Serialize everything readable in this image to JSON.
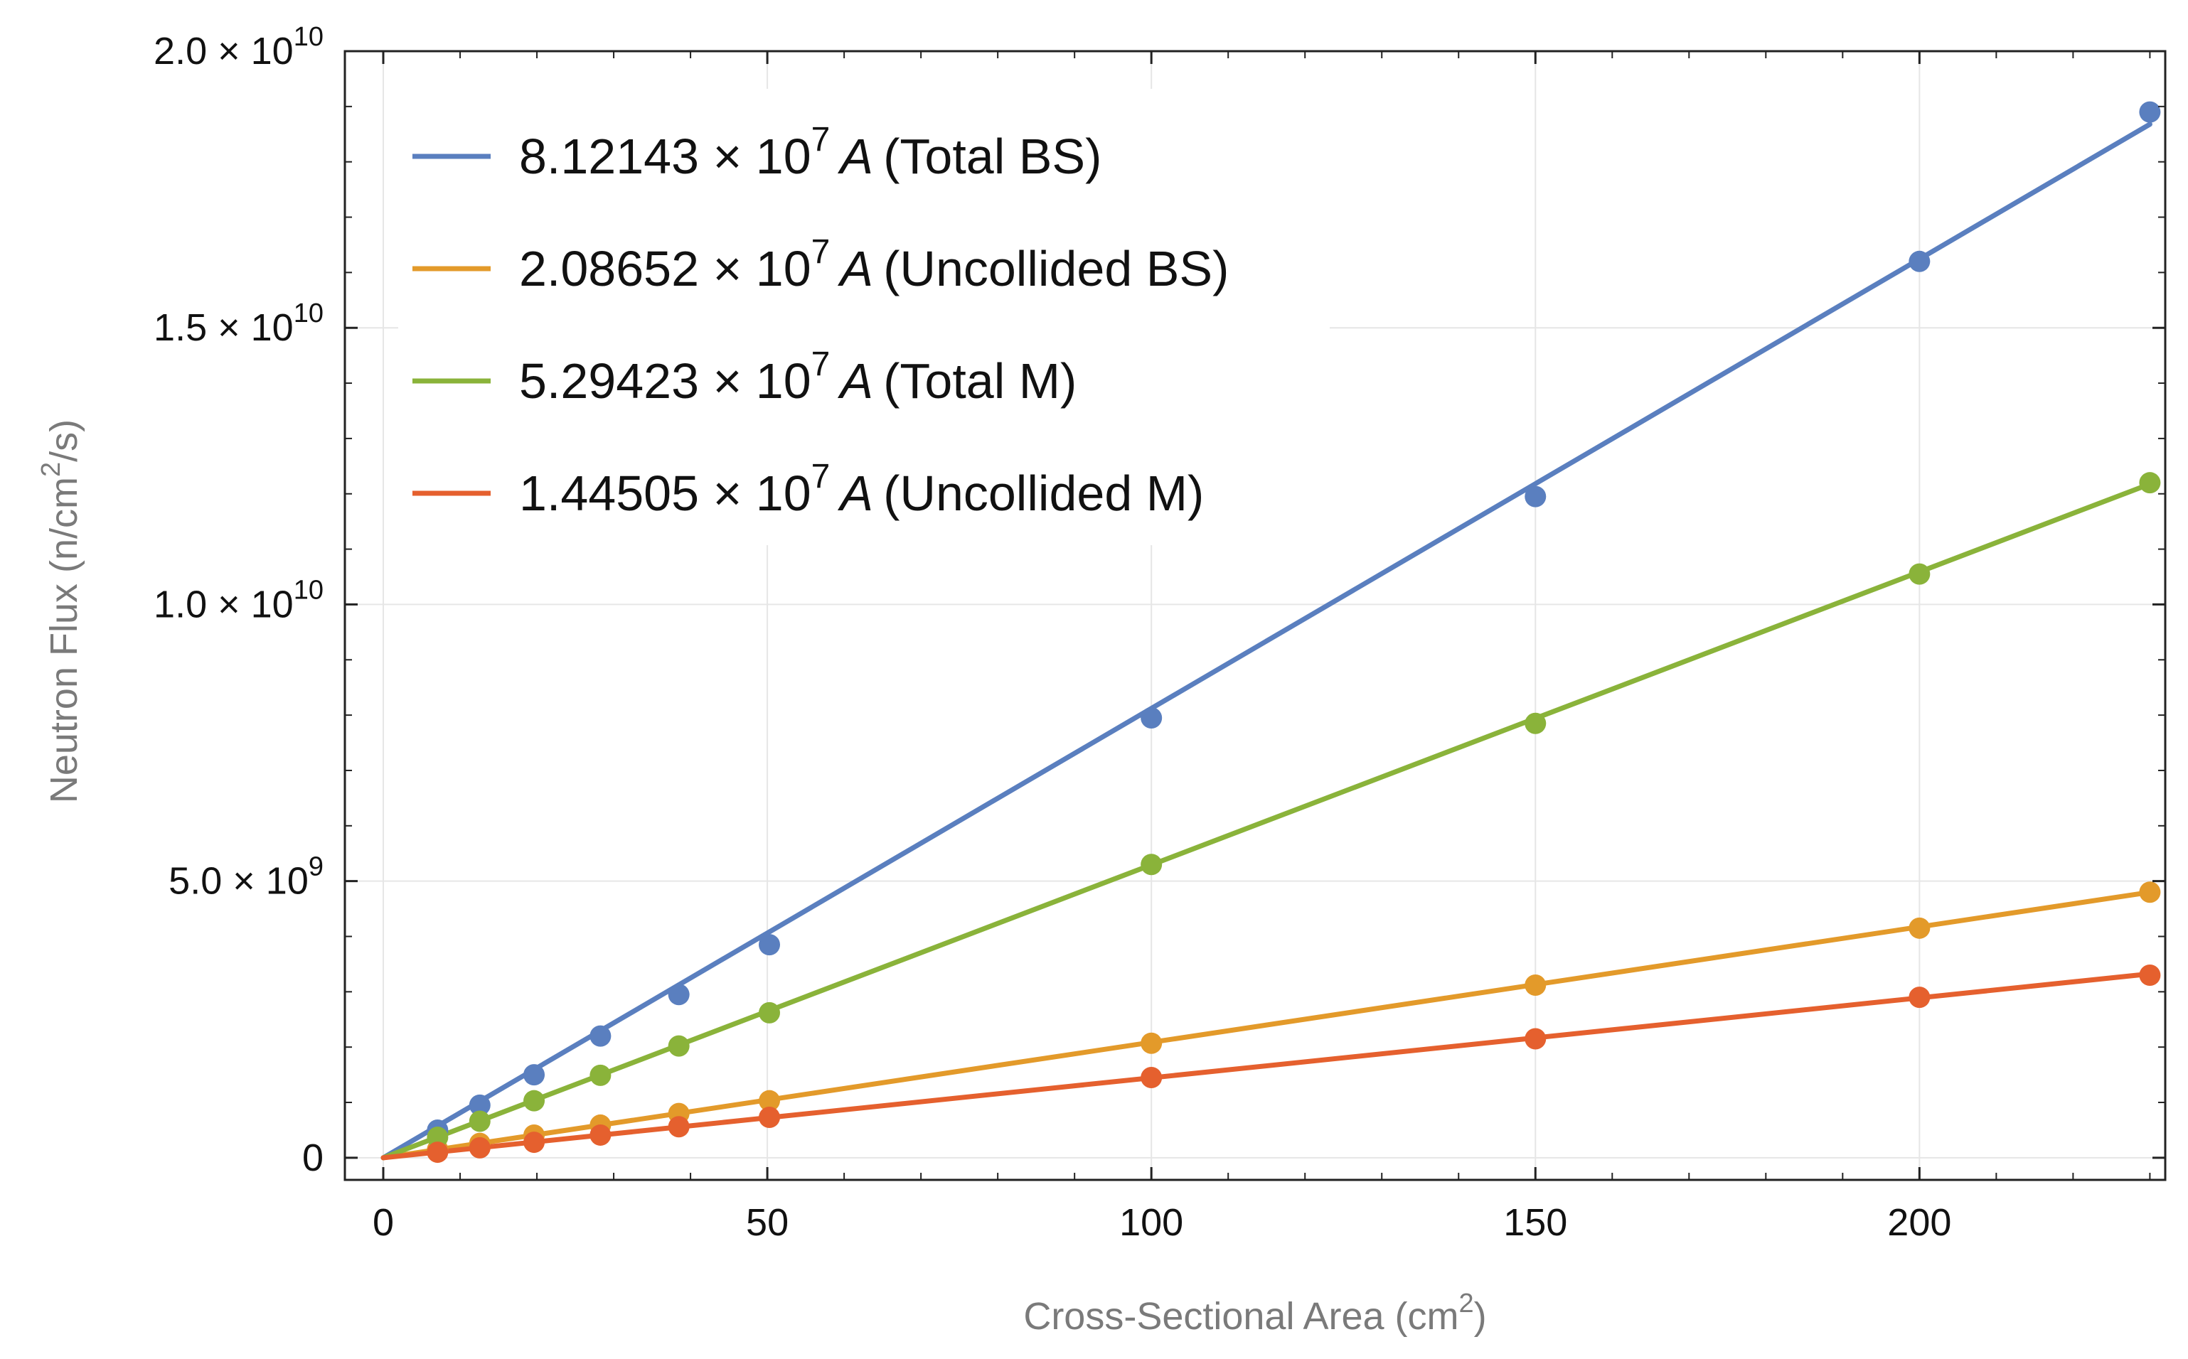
{
  "chart_data": {
    "type": "scatter",
    "xlabel": "Cross-Sectional Area (cm²)",
    "xlabel_parts": {
      "main": "Cross-Sectional Area (cm",
      "sup": "2",
      "tail": ")"
    },
    "ylabel": "Neutron Flux (n/cm²/s)",
    "ylabel_parts": {
      "main": "Neutron Flux (n/cm",
      "sup": "2",
      "tail": "/s)"
    },
    "xlim": [
      -5,
      232
    ],
    "ylim": [
      -400000000.0,
      20000000000.0
    ],
    "grid": true,
    "legend_position": "top-left",
    "x_ticks": [
      {
        "value": 0,
        "label": "0"
      },
      {
        "value": 50,
        "label": "50"
      },
      {
        "value": 100,
        "label": "100"
      },
      {
        "value": 150,
        "label": "150"
      },
      {
        "value": 200,
        "label": "200"
      }
    ],
    "y_ticks": [
      {
        "value": 0,
        "mant": "0",
        "exp": ""
      },
      {
        "value": 5000000000.0,
        "mant": "5.0 × 10",
        "exp": "9"
      },
      {
        "value": 10000000000.0,
        "mant": "1.0 × 10",
        "exp": "10"
      },
      {
        "value": 15000000000.0,
        "mant": "1.5 × 10",
        "exp": "10"
      },
      {
        "value": 20000000000.0,
        "mant": "2.0 × 10",
        "exp": "10"
      }
    ],
    "x": [
      7.07,
      12.57,
      19.63,
      28.27,
      38.48,
      50.27,
      100,
      150,
      200,
      230
    ],
    "series": [
      {
        "name": "Total BS",
        "color": "#5a7fbf",
        "slope": 81214300.0,
        "legend": {
          "coef": "8.12143 × 10",
          "exp": "7",
          "var": "A",
          "tag": "(Total BS)"
        },
        "values": [
          500000000.0,
          950000000.0,
          1500000000.0,
          2200000000.0,
          2950000000.0,
          3850000000.0,
          7950000000.0,
          11950000000.0,
          16200000000.0,
          18900000000.0
        ]
      },
      {
        "name": "Uncollided BS",
        "color": "#e39a2a",
        "slope": 20865200.0,
        "legend": {
          "coef": "2.08652 × 10",
          "exp": "7",
          "var": "A",
          "tag": "(Uncollided BS)"
        },
        "values": [
          150000000.0,
          260000000.0,
          410000000.0,
          590000000.0,
          800000000.0,
          1030000000.0,
          2070000000.0,
          3120000000.0,
          4150000000.0,
          4800000000.0
        ]
      },
      {
        "name": "Total M",
        "color": "#8ab33a",
        "slope": 52942300.0,
        "legend": {
          "coef": "5.29423 × 10",
          "exp": "7",
          "var": "A",
          "tag": "(Total M)"
        },
        "values": [
          370000000.0,
          660000000.0,
          1030000000.0,
          1490000000.0,
          2020000000.0,
          2620000000.0,
          5300000000.0,
          7850000000.0,
          10550000000.0,
          12200000000.0
        ]
      },
      {
        "name": "Uncollided M",
        "color": "#e5602e",
        "slope": 14450500.0,
        "legend": {
          "coef": "1.44505 × 10",
          "exp": "7",
          "var": "A",
          "tag": "(Uncollided M)"
        },
        "values": [
          100000000.0,
          180000000.0,
          280000000.0,
          410000000.0,
          560000000.0,
          730000000.0,
          1450000000.0,
          2150000000.0,
          2900000000.0,
          3300000000.0
        ]
      }
    ]
  }
}
